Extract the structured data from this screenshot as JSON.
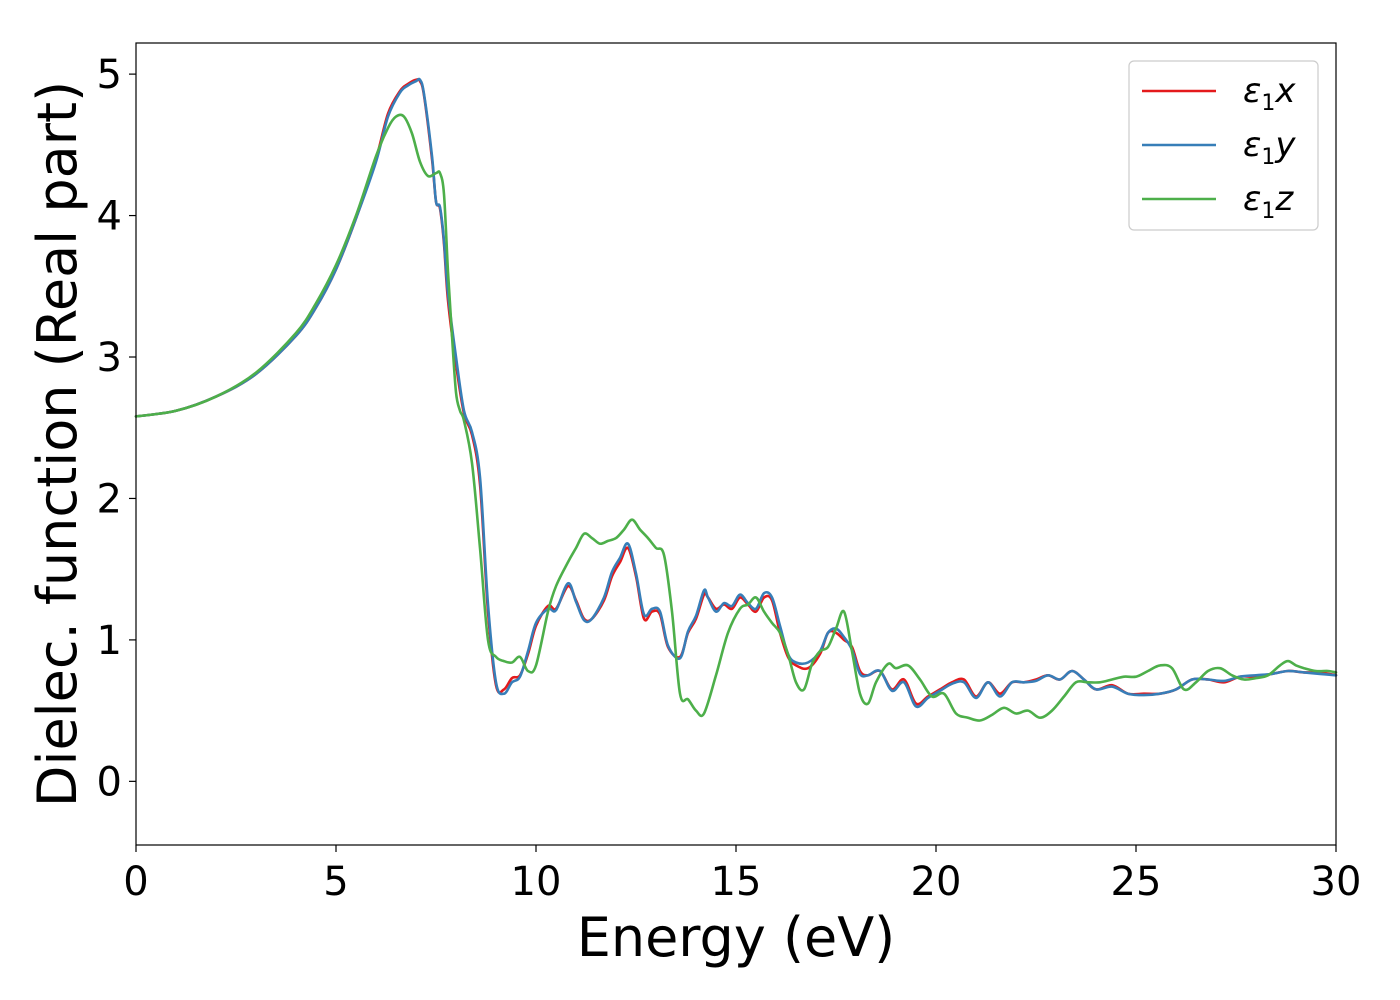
{
  "chart_data": {
    "type": "line",
    "title": "",
    "xlabel": "Energy (eV)",
    "ylabel": "Dielec. function (Real part)",
    "xlim": [
      0,
      30
    ],
    "ylim": [
      -0.45,
      5.22
    ],
    "xticks": [
      "0",
      "5",
      "10",
      "15",
      "20",
      "25",
      "30"
    ],
    "yticks": [
      "0",
      "1",
      "2",
      "3",
      "4",
      "5"
    ],
    "grid": false,
    "legend_position": "top-right",
    "series": [
      {
        "name": "ε1x",
        "legend_main": "ε",
        "legend_sub": "1",
        "legend_var": "x",
        "color": "#e41a1c",
        "x": [
          0,
          1,
          2,
          3,
          4,
          4.5,
          5,
          5.5,
          6,
          6.3,
          6.6,
          6.8,
          7.0,
          7.1,
          7.2,
          7.4,
          7.5,
          7.6,
          7.7,
          7.8,
          8.0,
          8.2,
          8.4,
          8.6,
          8.8,
          9.0,
          9.2,
          9.4,
          9.6,
          9.8,
          10.0,
          10.3,
          10.5,
          10.8,
          11.0,
          11.2,
          11.4,
          11.7,
          11.9,
          12.1,
          12.3,
          12.5,
          12.7,
          12.9,
          13.1,
          13.3,
          13.6,
          13.8,
          14.0,
          14.2,
          14.3,
          14.5,
          14.7,
          14.9,
          15.1,
          15.3,
          15.5,
          15.7,
          15.9,
          16.1,
          16.3,
          16.5,
          16.8,
          17.1,
          17.3,
          17.5,
          17.7,
          17.9,
          18.1,
          18.3,
          18.6,
          18.9,
          19.2,
          19.5,
          19.8,
          20.1,
          20.4,
          20.7,
          21.0,
          21.3,
          21.6,
          21.9,
          22.2,
          22.5,
          22.8,
          23.1,
          23.4,
          23.7,
          24.0,
          24.4,
          24.8,
          25.2,
          25.6,
          26.0,
          26.4,
          26.8,
          27.2,
          27.6,
          28.0,
          28.4,
          28.8,
          29.2,
          29.6,
          30.0
        ],
        "y": [
          2.58,
          2.62,
          2.72,
          2.88,
          3.15,
          3.35,
          3.62,
          3.98,
          4.4,
          4.72,
          4.88,
          4.93,
          4.96,
          4.95,
          4.85,
          4.4,
          4.1,
          4.05,
          3.8,
          3.4,
          2.95,
          2.6,
          2.45,
          2.1,
          1.2,
          0.68,
          0.65,
          0.73,
          0.75,
          0.9,
          1.1,
          1.24,
          1.22,
          1.38,
          1.28,
          1.15,
          1.15,
          1.28,
          1.45,
          1.55,
          1.65,
          1.45,
          1.15,
          1.2,
          1.18,
          0.95,
          0.88,
          1.05,
          1.15,
          1.32,
          1.3,
          1.22,
          1.25,
          1.22,
          1.3,
          1.25,
          1.2,
          1.3,
          1.28,
          1.05,
          0.88,
          0.82,
          0.8,
          0.9,
          1.05,
          1.05,
          1.0,
          0.95,
          0.78,
          0.75,
          0.78,
          0.65,
          0.72,
          0.55,
          0.6,
          0.65,
          0.7,
          0.72,
          0.6,
          0.7,
          0.62,
          0.7,
          0.7,
          0.72,
          0.75,
          0.72,
          0.78,
          0.72,
          0.65,
          0.68,
          0.62,
          0.62,
          0.62,
          0.65,
          0.72,
          0.72,
          0.7,
          0.74,
          0.74,
          0.76,
          0.78,
          0.77,
          0.77,
          0.75
        ]
      },
      {
        "name": "ε1y",
        "legend_main": "ε",
        "legend_sub": "1",
        "legend_var": "y",
        "color": "#377eb8",
        "x": [
          0,
          1,
          2,
          3,
          4,
          4.5,
          5,
          5.5,
          6,
          6.3,
          6.6,
          6.8,
          7.0,
          7.1,
          7.2,
          7.4,
          7.5,
          7.6,
          7.7,
          7.8,
          8.0,
          8.2,
          8.4,
          8.6,
          8.8,
          9.0,
          9.2,
          9.4,
          9.6,
          9.8,
          10.0,
          10.3,
          10.5,
          10.8,
          11.0,
          11.2,
          11.4,
          11.7,
          11.9,
          12.1,
          12.3,
          12.5,
          12.7,
          12.9,
          13.1,
          13.3,
          13.6,
          13.8,
          14.0,
          14.2,
          14.3,
          14.5,
          14.7,
          14.9,
          15.1,
          15.3,
          15.5,
          15.7,
          15.9,
          16.1,
          16.3,
          16.5,
          16.8,
          17.1,
          17.3,
          17.5,
          17.7,
          17.9,
          18.1,
          18.3,
          18.6,
          18.9,
          19.2,
          19.5,
          19.8,
          20.1,
          20.4,
          20.7,
          21.0,
          21.3,
          21.6,
          21.9,
          22.2,
          22.5,
          22.8,
          23.1,
          23.4,
          23.7,
          24.0,
          24.4,
          24.8,
          25.2,
          25.6,
          26.0,
          26.4,
          26.8,
          27.2,
          27.6,
          28.0,
          28.4,
          28.8,
          29.2,
          29.6,
          30.0
        ],
        "y": [
          2.58,
          2.62,
          2.72,
          2.88,
          3.15,
          3.35,
          3.62,
          3.98,
          4.38,
          4.7,
          4.87,
          4.92,
          4.95,
          4.96,
          4.86,
          4.42,
          4.1,
          4.06,
          3.82,
          3.45,
          3.0,
          2.62,
          2.47,
          2.15,
          1.25,
          0.7,
          0.62,
          0.7,
          0.74,
          0.92,
          1.12,
          1.22,
          1.21,
          1.4,
          1.27,
          1.14,
          1.15,
          1.3,
          1.48,
          1.58,
          1.68,
          1.47,
          1.18,
          1.22,
          1.2,
          0.96,
          0.87,
          1.06,
          1.17,
          1.35,
          1.3,
          1.2,
          1.26,
          1.24,
          1.32,
          1.26,
          1.22,
          1.33,
          1.3,
          1.1,
          0.9,
          0.84,
          0.84,
          0.92,
          1.05,
          1.08,
          1.02,
          0.93,
          0.76,
          0.75,
          0.78,
          0.64,
          0.7,
          0.53,
          0.59,
          0.64,
          0.69,
          0.7,
          0.59,
          0.7,
          0.6,
          0.7,
          0.7,
          0.71,
          0.75,
          0.72,
          0.78,
          0.72,
          0.65,
          0.67,
          0.62,
          0.61,
          0.62,
          0.65,
          0.72,
          0.72,
          0.71,
          0.74,
          0.75,
          0.76,
          0.78,
          0.77,
          0.76,
          0.75
        ]
      },
      {
        "name": "ε1z",
        "legend_main": "ε",
        "legend_sub": "1",
        "legend_var": "z",
        "color": "#4daf4a",
        "x": [
          0,
          1,
          2,
          3,
          4,
          4.5,
          5,
          5.5,
          6,
          6.3,
          6.5,
          6.7,
          6.9,
          7.1,
          7.3,
          7.5,
          7.6,
          7.7,
          7.8,
          7.9,
          8.0,
          8.1,
          8.2,
          8.4,
          8.6,
          8.8,
          9.0,
          9.2,
          9.4,
          9.6,
          9.8,
          10.0,
          10.3,
          10.5,
          10.8,
          11.0,
          11.2,
          11.4,
          11.6,
          11.8,
          12.0,
          12.2,
          12.4,
          12.6,
          12.8,
          13.0,
          13.2,
          13.4,
          13.6,
          13.8,
          14.0,
          14.2,
          14.5,
          14.8,
          15.1,
          15.3,
          15.5,
          15.7,
          15.9,
          16.1,
          16.3,
          16.5,
          16.7,
          16.9,
          17.1,
          17.3,
          17.5,
          17.7,
          17.9,
          18.1,
          18.3,
          18.5,
          18.8,
          19.0,
          19.3,
          19.6,
          19.9,
          20.2,
          20.5,
          20.8,
          21.1,
          21.4,
          21.7,
          22.0,
          22.3,
          22.6,
          22.9,
          23.2,
          23.5,
          23.8,
          24.1,
          24.4,
          24.7,
          25.0,
          25.3,
          25.6,
          25.9,
          26.2,
          26.5,
          26.8,
          27.1,
          27.4,
          27.7,
          28.0,
          28.3,
          28.6,
          28.8,
          29.0,
          29.2,
          29.5,
          29.8,
          30.0
        ],
        "y": [
          2.58,
          2.62,
          2.72,
          2.89,
          3.17,
          3.38,
          3.65,
          4.0,
          4.42,
          4.62,
          4.7,
          4.7,
          4.58,
          4.38,
          4.28,
          4.3,
          4.3,
          4.15,
          3.6,
          3.15,
          2.75,
          2.62,
          2.55,
          2.25,
          1.65,
          1.0,
          0.88,
          0.85,
          0.84,
          0.88,
          0.78,
          0.82,
          1.2,
          1.38,
          1.55,
          1.65,
          1.75,
          1.72,
          1.68,
          1.7,
          1.72,
          1.78,
          1.85,
          1.78,
          1.72,
          1.65,
          1.6,
          1.2,
          0.62,
          0.58,
          0.5,
          0.48,
          0.75,
          1.05,
          1.22,
          1.25,
          1.3,
          1.2,
          1.12,
          1.05,
          0.9,
          0.7,
          0.65,
          0.83,
          0.92,
          0.95,
          1.08,
          1.2,
          0.92,
          0.62,
          0.55,
          0.7,
          0.83,
          0.8,
          0.82,
          0.72,
          0.6,
          0.62,
          0.48,
          0.45,
          0.43,
          0.47,
          0.52,
          0.48,
          0.5,
          0.45,
          0.5,
          0.6,
          0.7,
          0.7,
          0.7,
          0.72,
          0.74,
          0.74,
          0.78,
          0.82,
          0.8,
          0.65,
          0.7,
          0.78,
          0.8,
          0.75,
          0.72,
          0.73,
          0.75,
          0.82,
          0.85,
          0.82,
          0.8,
          0.78,
          0.78,
          0.77
        ]
      }
    ]
  }
}
